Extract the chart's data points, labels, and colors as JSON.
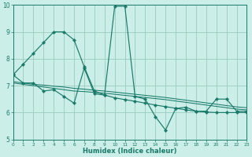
{
  "xlabel": "Humidex (Indice chaleur)",
  "bg_color": "#cceee8",
  "grid_color": "#99ccbb",
  "line_color": "#1a7a6a",
  "xlim": [
    0,
    23
  ],
  "ylim": [
    5,
    10
  ],
  "xtick_vals": [
    0,
    1,
    2,
    3,
    4,
    5,
    6,
    7,
    8,
    9,
    10,
    11,
    12,
    13,
    14,
    15,
    16,
    17,
    18,
    19,
    20,
    21,
    22,
    23
  ],
  "ytick_vals": [
    5,
    6,
    7,
    8,
    9,
    10
  ],
  "series_main": [
    7.4,
    7.1,
    7.1,
    6.8,
    6.85,
    6.6,
    6.35,
    7.65,
    6.7,
    6.65,
    9.95,
    9.95,
    6.6,
    6.5,
    5.85,
    5.35,
    6.15,
    6.2,
    6.05,
    6.05,
    6.5,
    6.5,
    6.05,
    6.05
  ],
  "series_smooth": [
    7.4,
    7.8,
    8.2,
    8.6,
    9.0,
    9.0,
    8.7,
    7.7,
    6.8,
    6.65,
    6.55,
    6.48,
    6.42,
    6.35,
    6.28,
    6.22,
    6.16,
    6.1,
    6.05,
    6.02,
    6.0,
    6.0,
    6.0,
    6.0
  ],
  "series_trend1": [
    7.1,
    7.05,
    7.0,
    6.95,
    6.9,
    6.85,
    6.8,
    6.78,
    6.75,
    6.72,
    6.68,
    6.64,
    6.6,
    6.56,
    6.52,
    6.48,
    6.43,
    6.38,
    6.33,
    6.28,
    6.23,
    6.18,
    6.13,
    6.1
  ],
  "series_trend2": [
    7.15,
    7.1,
    7.05,
    7.02,
    6.98,
    6.95,
    6.9,
    6.87,
    6.83,
    6.8,
    6.76,
    6.72,
    6.68,
    6.64,
    6.6,
    6.56,
    6.51,
    6.46,
    6.41,
    6.36,
    6.31,
    6.26,
    6.21,
    6.18
  ]
}
